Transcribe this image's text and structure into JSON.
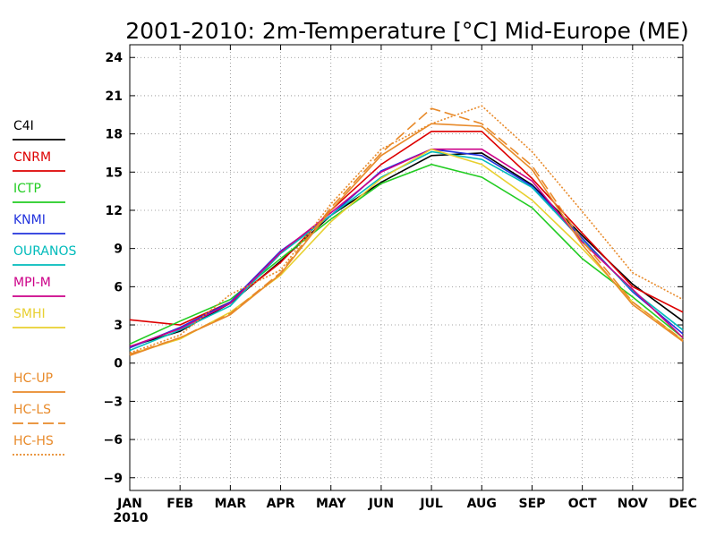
{
  "chart_data": {
    "type": "line",
    "title": "2001-2010: 2m-Temperature [°C] Mid-Europe (ME)",
    "xlabel": "",
    "ylabel": "",
    "categories": [
      "JAN",
      "FEB",
      "MAR",
      "APR",
      "MAY",
      "JUN",
      "JUL",
      "AUG",
      "SEP",
      "OCT",
      "NOV",
      "DEC"
    ],
    "x_sublabel": "2010",
    "ylim": [
      -10,
      25
    ],
    "yticks": [
      -9,
      -6,
      -3,
      0,
      3,
      6,
      9,
      12,
      15,
      18,
      21,
      24
    ],
    "grid": true,
    "legend_position": "left",
    "series": [
      {
        "name": "C4I",
        "color": "#000000",
        "dash": "solid",
        "values": [
          1.3,
          2.5,
          4.7,
          8.0,
          11.6,
          14.2,
          16.3,
          16.5,
          14.0,
          10.0,
          6.2,
          3.3
        ]
      },
      {
        "name": "CNRM",
        "color": "#dd0000",
        "dash": "solid",
        "values": [
          3.4,
          3.0,
          4.8,
          7.9,
          12.0,
          15.6,
          18.2,
          18.2,
          14.5,
          10.2,
          6.0,
          4.0
        ]
      },
      {
        "name": "ICTP",
        "color": "#22cc22",
        "dash": "solid",
        "values": [
          1.5,
          3.3,
          5.0,
          8.2,
          11.3,
          14.1,
          15.6,
          14.6,
          12.2,
          8.2,
          5.2,
          2.0
        ]
      },
      {
        "name": "KNMI",
        "color": "#2233dd",
        "dash": "solid",
        "values": [
          1.2,
          2.8,
          4.8,
          8.8,
          11.6,
          15.1,
          16.8,
          16.3,
          13.9,
          9.8,
          5.6,
          2.3
        ]
      },
      {
        "name": "OURANOS",
        "color": "#00bbbb",
        "dash": "solid",
        "values": [
          1.0,
          2.6,
          4.5,
          8.6,
          11.6,
          14.6,
          16.6,
          16.0,
          13.8,
          9.6,
          5.7,
          2.6
        ]
      },
      {
        "name": "MPI-M",
        "color": "#cc0088",
        "dash": "solid",
        "values": [
          1.3,
          2.7,
          4.7,
          8.7,
          11.8,
          15.0,
          16.8,
          16.8,
          14.3,
          9.5,
          5.8,
          2.0
        ]
      },
      {
        "name": "SMHI",
        "color": "#e8d030",
        "dash": "solid",
        "values": [
          0.7,
          1.9,
          4.0,
          6.9,
          11.1,
          14.5,
          16.8,
          15.6,
          12.8,
          9.0,
          4.8,
          1.8
        ]
      },
      {
        "name": "HC-UP",
        "color": "#e88a2a",
        "dash": "solid",
        "values": [
          0.6,
          2.0,
          3.8,
          7.0,
          12.0,
          16.3,
          18.8,
          18.6,
          15.2,
          9.3,
          4.6,
          1.7
        ]
      },
      {
        "name": "HC-LS",
        "color": "#e88a2a",
        "dash": "dashed",
        "values": [
          0.7,
          2.0,
          3.9,
          7.1,
          12.2,
          16.5,
          20.0,
          18.8,
          15.5,
          9.6,
          4.8,
          1.8
        ]
      },
      {
        "name": "HC-HS",
        "color": "#e88a2a",
        "dash": "dotted",
        "values": [
          0.8,
          2.2,
          5.4,
          7.3,
          12.5,
          16.8,
          18.8,
          20.2,
          16.6,
          11.9,
          7.1,
          5.0
        ]
      }
    ]
  }
}
